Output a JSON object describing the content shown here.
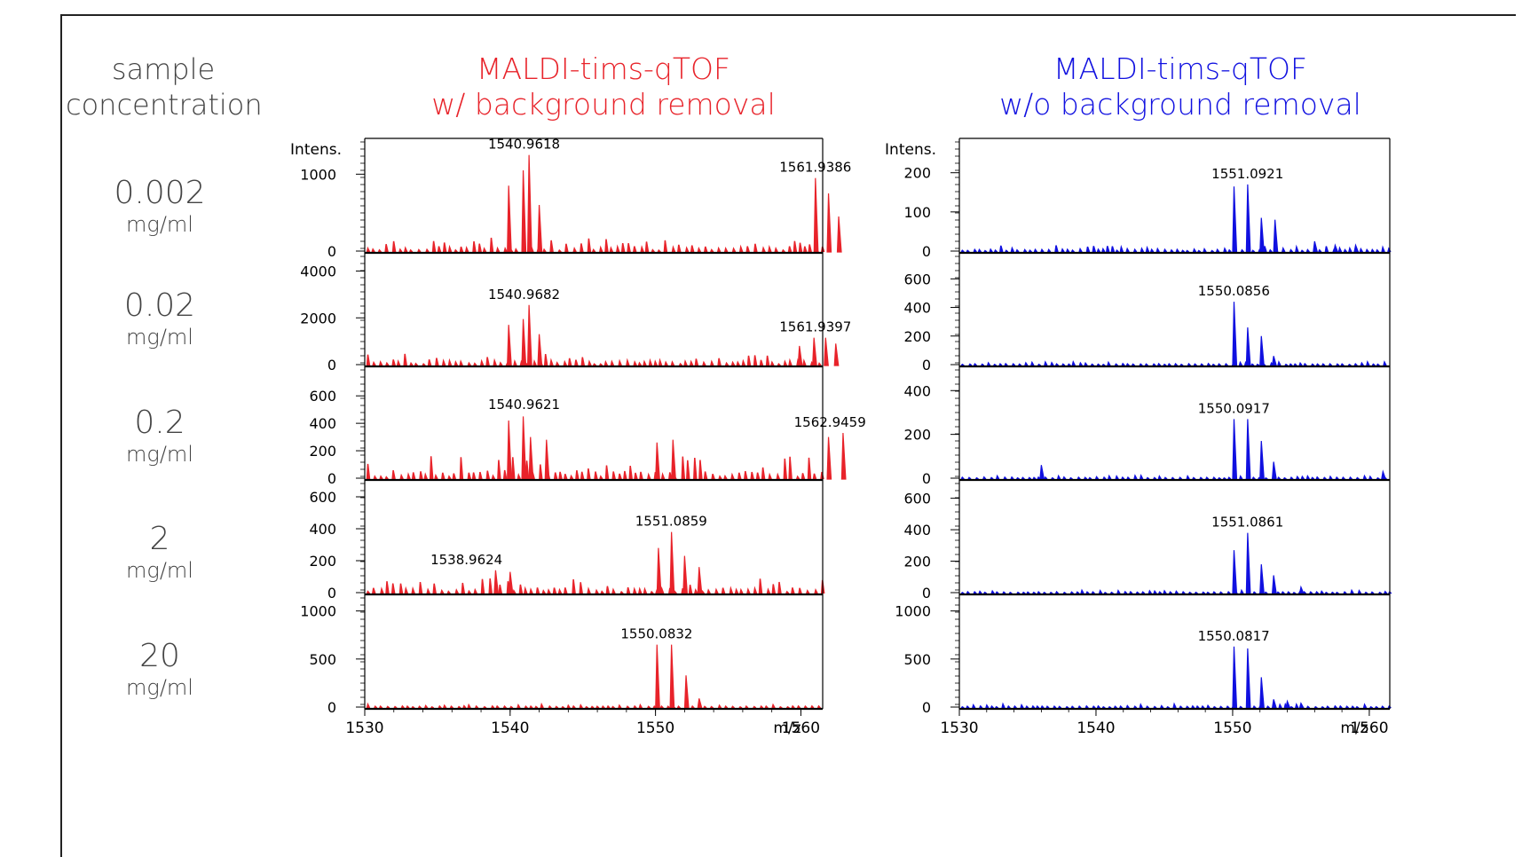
{
  "row_header": "sample\nconcentration",
  "row_header_lines": [
    "sample",
    "concentration"
  ],
  "concentrations": [
    {
      "value": "0.002",
      "unit": "mg/ml"
    },
    {
      "value": "0.02",
      "unit": "mg/ml"
    },
    {
      "value": "0.2",
      "unit": "mg/ml"
    },
    {
      "value": "2",
      "unit": "mg/ml"
    },
    {
      "value": "20",
      "unit": "mg/ml"
    }
  ],
  "colors": {
    "left": "#e8232a",
    "right": "#1010e0",
    "axis": "#000000",
    "text": "#444444"
  },
  "chart_data": [
    {
      "type": "line",
      "title_lines": [
        "MALDI-tims-qTOF",
        "w/ background removal"
      ],
      "color": "#e8232a",
      "ylabel": "Intens.",
      "xlabel": "m/z",
      "xlim": [
        1530,
        1561.5
      ],
      "xticks": [
        1530,
        1540,
        1550,
        1560
      ],
      "panels": [
        {
          "ylim": [
            0,
            1350
          ],
          "yticks": [
            0,
            1000
          ],
          "peaks": [
            [
              1539.9,
              850
            ],
            [
              1540.9,
              1050
            ],
            [
              1541.3,
              1250
            ],
            [
              1542.0,
              600
            ],
            [
              1561.0,
              950
            ],
            [
              1561.9,
              750
            ],
            [
              1562.6,
              450
            ]
          ],
          "labels": [
            {
              "text": "1540.9618",
              "x": 1540.96,
              "y": 1250
            },
            {
              "text": "1561.9386",
              "x": 1561.0,
              "y": 950
            }
          ],
          "noise": 180
        },
        {
          "ylim": [
            0,
            4400
          ],
          "yticks": [
            0,
            2000,
            4000
          ],
          "peaks": [
            [
              1539.9,
              1700
            ],
            [
              1540.9,
              1950
            ],
            [
              1541.3,
              2550
            ],
            [
              1542.0,
              1300
            ],
            [
              1559.9,
              800
            ],
            [
              1560.9,
              1150
            ],
            [
              1561.7,
              1150
            ],
            [
              1562.4,
              900
            ]
          ],
          "labels": [
            {
              "text": "1540.9682",
              "x": 1540.96,
              "y": 2550
            },
            {
              "text": "1561.9397",
              "x": 1561.0,
              "y": 1150
            }
          ],
          "noise": 500
        },
        {
          "ylim": [
            0,
            750
          ],
          "yticks": [
            0,
            200,
            400,
            600
          ],
          "peaks": [
            [
              1539.9,
              420
            ],
            [
              1540.9,
              450
            ],
            [
              1541.4,
              300
            ],
            [
              1542.5,
              280
            ],
            [
              1550.1,
              260
            ],
            [
              1551.2,
              280
            ],
            [
              1561.9,
              300
            ],
            [
              1562.9,
              330
            ]
          ],
          "labels": [
            {
              "text": "1540.9621",
              "x": 1540.96,
              "y": 460
            },
            {
              "text": "1562.9459",
              "x": 1562.0,
              "y": 330
            }
          ],
          "noise": 160
        },
        {
          "ylim": [
            0,
            650
          ],
          "yticks": [
            0,
            200,
            400,
            600
          ],
          "peaks": [
            [
              1539.0,
              140
            ],
            [
              1540.0,
              130
            ],
            [
              1550.2,
              280
            ],
            [
              1551.1,
              380
            ],
            [
              1552.0,
              230
            ],
            [
              1553.0,
              160
            ]
          ],
          "labels": [
            {
              "text": "1551.0859",
              "x": 1551.08,
              "y": 380
            },
            {
              "text": "1538.9624",
              "x": 1537.0,
              "y": 140
            }
          ],
          "noise": 90
        },
        {
          "ylim": [
            0,
            1080
          ],
          "yticks": [
            0,
            500,
            1000
          ],
          "peaks": [
            [
              1550.1,
              650
            ],
            [
              1551.1,
              650
            ],
            [
              1552.1,
              330
            ],
            [
              1553.0,
              90
            ]
          ],
          "labels": [
            {
              "text": "1550.0832",
              "x": 1550.08,
              "y": 650
            }
          ],
          "noise": 30
        }
      ]
    },
    {
      "type": "line",
      "title_lines": [
        "MALDI-tims-qTOF",
        "w/o background removal"
      ],
      "color": "#1010e0",
      "ylabel": "Intens.",
      "xlabel": "m/z",
      "xlim": [
        1530,
        1561.5
      ],
      "xticks": [
        1530,
        1540,
        1550,
        1560
      ],
      "panels": [
        {
          "ylim": [
            0,
            265
          ],
          "yticks": [
            0,
            100,
            200
          ],
          "peaks": [
            [
              1550.1,
              165
            ],
            [
              1551.1,
              170
            ],
            [
              1552.1,
              85
            ],
            [
              1553.1,
              80
            ],
            [
              1556.0,
              25
            ],
            [
              1557.5,
              15
            ],
            [
              1559.0,
              15
            ]
          ],
          "labels": [
            {
              "text": "1551.0921",
              "x": 1551.09,
              "y": 170
            }
          ],
          "noise": 15
        },
        {
          "ylim": [
            0,
            720
          ],
          "yticks": [
            0,
            200,
            400,
            600
          ],
          "peaks": [
            [
              1550.1,
              440
            ],
            [
              1551.1,
              260
            ],
            [
              1552.1,
              200
            ],
            [
              1553.0,
              60
            ]
          ],
          "labels": [
            {
              "text": "1550.0856",
              "x": 1550.09,
              "y": 440
            }
          ],
          "noise": 18
        },
        {
          "ylim": [
            0,
            470
          ],
          "yticks": [
            0,
            200,
            400
          ],
          "peaks": [
            [
              1536.0,
              60
            ],
            [
              1550.1,
              270
            ],
            [
              1551.1,
              270
            ],
            [
              1552.1,
              170
            ],
            [
              1553.0,
              75
            ],
            [
              1561.0,
              30
            ]
          ],
          "labels": [
            {
              "text": "1550.0917",
              "x": 1550.09,
              "y": 270
            }
          ],
          "noise": 12
        },
        {
          "ylim": [
            0,
            660
          ],
          "yticks": [
            0,
            200,
            400,
            600
          ],
          "peaks": [
            [
              1550.1,
              270
            ],
            [
              1551.1,
              380
            ],
            [
              1552.1,
              180
            ],
            [
              1553.0,
              110
            ],
            [
              1555.0,
              35
            ]
          ],
          "labels": [
            {
              "text": "1551.0861",
              "x": 1551.09,
              "y": 380
            }
          ],
          "noise": 14
        },
        {
          "ylim": [
            0,
            1080
          ],
          "yticks": [
            0,
            500,
            1000
          ],
          "peaks": [
            [
              1550.1,
              630
            ],
            [
              1551.1,
              610
            ],
            [
              1552.1,
              310
            ],
            [
              1553.0,
              80
            ],
            [
              1554.0,
              60
            ],
            [
              1555.0,
              40
            ]
          ],
          "labels": [
            {
              "text": "1550.0817",
              "x": 1550.08,
              "y": 630
            }
          ],
          "noise": 30
        }
      ]
    }
  ]
}
